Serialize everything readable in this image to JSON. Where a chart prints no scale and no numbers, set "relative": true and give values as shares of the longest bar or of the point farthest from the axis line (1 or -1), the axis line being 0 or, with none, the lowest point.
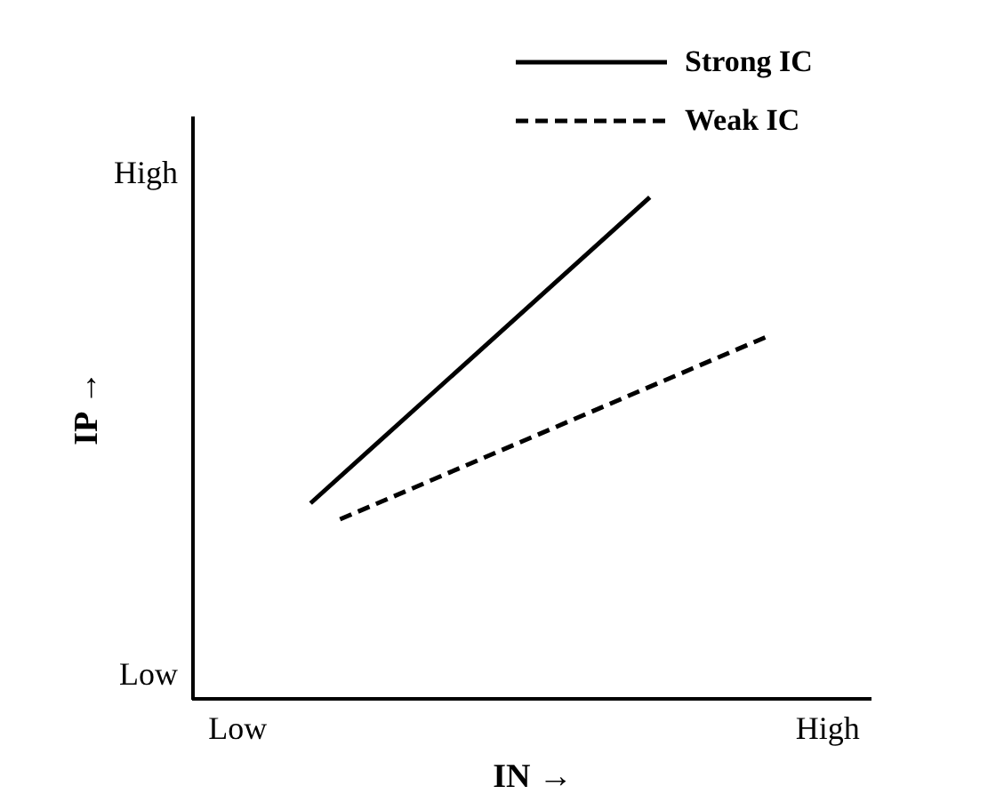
{
  "chart_data": {
    "type": "line",
    "relative": true,
    "xlabel": "IN →",
    "ylabel": "IP →",
    "categories": [
      "Low",
      null,
      null,
      null,
      null,
      null,
      null,
      null,
      null,
      null,
      null,
      null,
      null,
      null,
      null,
      null,
      null,
      null,
      null,
      null,
      null,
      null,
      null,
      null,
      null,
      null,
      null,
      null,
      null,
      null,
      null,
      null,
      null,
      null,
      null,
      null,
      null,
      null,
      null,
      null,
      "High"
    ],
    "series": [
      {
        "name": "Strong IC",
        "color": "#000000",
        "line_style": "solid",
        "values": [
          null,
          null,
          null,
          null,
          null,
          0.39,
          null,
          null,
          null,
          null,
          null,
          null,
          null,
          null,
          null,
          null,
          null,
          null,
          null,
          null,
          null,
          null,
          null,
          null,
          null,
          null,
          null,
          null,
          1,
          null,
          null,
          null,
          null,
          null,
          null,
          null,
          null,
          null,
          null,
          null,
          null
        ]
      },
      {
        "name": "Weak IC",
        "color": "#000000",
        "line_style": "dashed",
        "values": [
          null,
          null,
          null,
          null,
          null,
          null,
          null,
          0.358,
          null,
          null,
          null,
          null,
          null,
          null,
          null,
          null,
          null,
          null,
          null,
          null,
          null,
          null,
          null,
          null,
          null,
          null,
          null,
          null,
          null,
          null,
          null,
          null,
          null,
          null,
          null,
          null,
          0.723,
          null,
          null,
          null,
          null
        ]
      }
    ],
    "annotations": [
      "High",
      "Low"
    ],
    "legend": "top right"
  }
}
